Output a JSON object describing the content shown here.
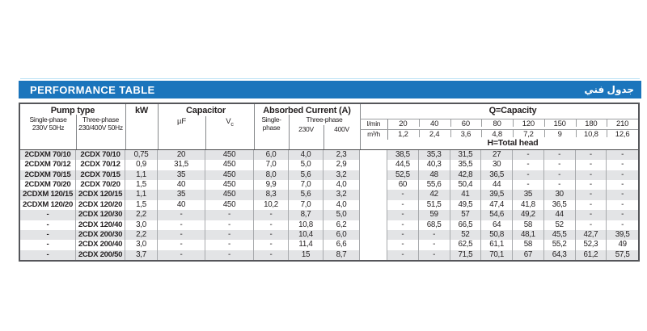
{
  "colors": {
    "accent_blue": "#1b75bc",
    "stripe": "#e3e4e6",
    "border_dark": "#55565a",
    "grid_light": "#a8aaad"
  },
  "title_bar": {
    "title_en": "PERFORMANCE TABLE",
    "title_ar": "جدول فني"
  },
  "table": {
    "header": {
      "pump_type": "Pump type",
      "single_phase_line1": "Single-phase",
      "single_phase_line2": "230V 50Hz",
      "three_phase_line1": "Three-phase",
      "three_phase_line2": "230/400V 50Hz",
      "kw": "kW",
      "capacitor": "Capacitor",
      "uf": "µF",
      "vc_main": "V",
      "vc_sub": "c",
      "absorbed_current": "Absorbed Current (A)",
      "abs_single_line1": "Single-",
      "abs_single_line2": "phase",
      "abs_three_phase": "Three-phase",
      "v230": "230V",
      "v400": "400V",
      "lmin": "l/min",
      "m3h": "m³/h",
      "q_capacity": "Q=Capacity",
      "h_total_head": "H=Total head",
      "capacity_lmin": [
        "20",
        "40",
        "60",
        "80",
        "120",
        "150",
        "180",
        "210"
      ],
      "capacity_m3h": [
        "1,2",
        "2,4",
        "3,6",
        "4,8",
        "7,2",
        "9",
        "10,8",
        "12,6"
      ]
    },
    "rows": [
      [
        "2CDXM 70/10",
        "2CDX 70/10",
        "0,75",
        "20",
        "450",
        "6,0",
        "4,0",
        "2,3",
        "",
        "38,5",
        "35,3",
        "31,5",
        "27",
        "-",
        "-",
        "-",
        "-"
      ],
      [
        "2CDXM 70/12",
        "2CDX 70/12",
        "0,9",
        "31,5",
        "450",
        "7,0",
        "5,0",
        "2,9",
        "",
        "44,5",
        "40,3",
        "35,5",
        "30",
        "-",
        "-",
        "-",
        "-"
      ],
      [
        "2CDXM 70/15",
        "2CDX 70/15",
        "1,1",
        "35",
        "450",
        "8,0",
        "5,6",
        "3,2",
        "",
        "52,5",
        "48",
        "42,8",
        "36,5",
        "-",
        "-",
        "-",
        "-"
      ],
      [
        "2CDXM 70/20",
        "2CDX 70/20",
        "1,5",
        "40",
        "450",
        "9,9",
        "7,0",
        "4,0",
        "",
        "60",
        "55,6",
        "50,4",
        "44",
        "-",
        "-",
        "-",
        "-"
      ],
      [
        "2CDXM 120/15",
        "2CDX 120/15",
        "1,1",
        "35",
        "450",
        "8,3",
        "5,6",
        "3,2",
        "",
        "-",
        "42",
        "41",
        "39,5",
        "35",
        "30",
        "-",
        "-"
      ],
      [
        "2CDXM 120/20",
        "2CDX 120/20",
        "1,5",
        "40",
        "450",
        "10,2",
        "7,0",
        "4,0",
        "",
        "-",
        "51,5",
        "49,5",
        "47,4",
        "41,8",
        "36,5",
        "-",
        "-"
      ],
      [
        "-",
        "2CDX 120/30",
        "2,2",
        "-",
        "-",
        "-",
        "8,7",
        "5,0",
        "",
        "-",
        "59",
        "57",
        "54,6",
        "49,2",
        "44",
        "-",
        "-"
      ],
      [
        "-",
        "2CDX 120/40",
        "3,0",
        "-",
        "-",
        "-",
        "10,8",
        "6,2",
        "",
        "-",
        "68,5",
        "66,5",
        "64",
        "58",
        "52",
        "-",
        "-"
      ],
      [
        "-",
        "2CDX 200/30",
        "2,2",
        "-",
        "-",
        "-",
        "10,4",
        "6,0",
        "",
        "-",
        "-",
        "52",
        "50,8",
        "48,1",
        "45,5",
        "42,7",
        "39,5"
      ],
      [
        "-",
        "2CDX 200/40",
        "3,0",
        "-",
        "-",
        "-",
        "11,4",
        "6,6",
        "",
        "-",
        "-",
        "62,5",
        "61,1",
        "58",
        "55,2",
        "52,3",
        "49"
      ],
      [
        "-",
        "2CDX 200/50",
        "3,7",
        "-",
        "-",
        "-",
        "15",
        "8,7",
        "",
        "-",
        "-",
        "71,5",
        "70,1",
        "67",
        "64,3",
        "61,2",
        "57,5"
      ]
    ]
  }
}
